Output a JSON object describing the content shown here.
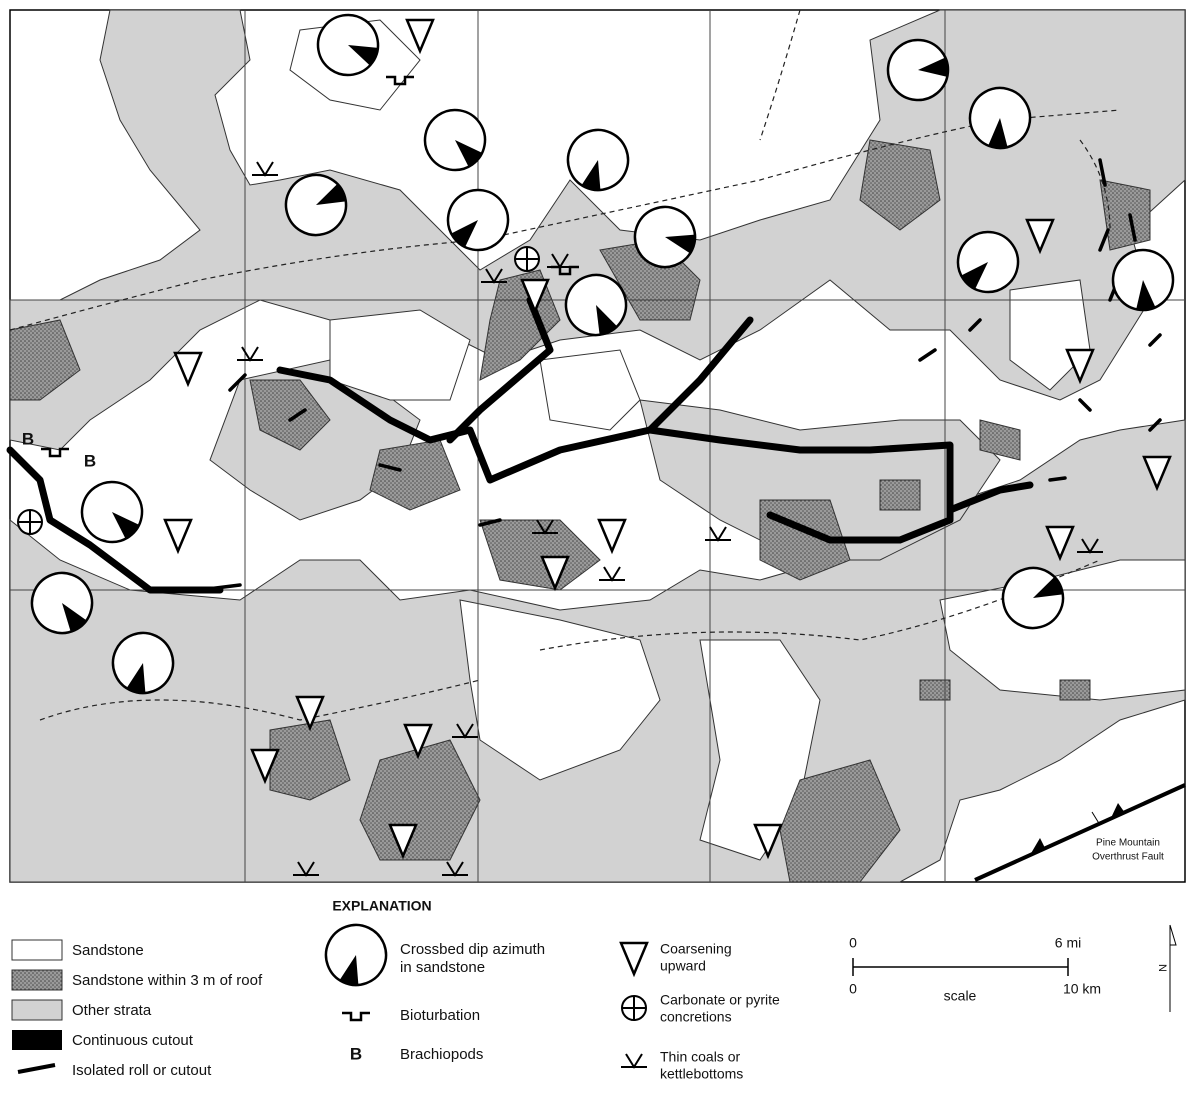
{
  "map": {
    "labels": [
      "B",
      "B"
    ],
    "fault_label": [
      "Pine Mountain",
      "Overthrust Fault"
    ]
  },
  "explanation": {
    "title": "EXPLANATION",
    "units": [
      "Sandstone",
      "Sandstone within 3 m of roof",
      "Other strata",
      "Continuous cutout",
      "Isolated roll or cutout"
    ],
    "symbols": {
      "crossbed": [
        "Crossbed dip azimuth",
        "in sandstone"
      ],
      "bioturbation": "Bioturbation",
      "brachiopod_symbol": "B",
      "brachiopods": "Brachiopods",
      "coarsening": [
        "Coarsening",
        "upward"
      ],
      "concretions": [
        "Carbonate or pyrite",
        "concretions"
      ],
      "coals": [
        "Thin coals or",
        "kettlebottoms"
      ]
    },
    "scale": {
      "miles": [
        "0",
        "6 mi"
      ],
      "km": [
        "0",
        "10 km"
      ],
      "caption": "scale"
    },
    "north": "N"
  }
}
